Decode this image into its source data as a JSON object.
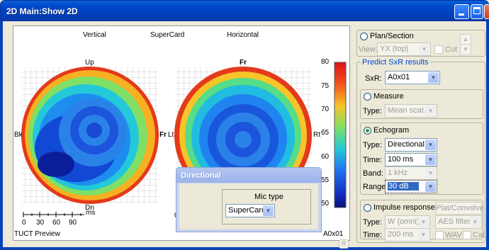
{
  "window": {
    "title": "2D  Main:Show 2D"
  },
  "plot": {
    "header_left": "Vertical",
    "header_center": "SuperCard",
    "header_right": "Horizontal",
    "left_top": "Up",
    "left_bottom": "Dn",
    "left_left": "Bk",
    "left_right": "Fr",
    "right_top": "Fr",
    "right_left": "Lt",
    "right_right": "Rt",
    "scale_unit": "ms",
    "scale_ticks": [
      "0",
      "30",
      "60",
      "90"
    ],
    "footer_left": "TUCT Preview",
    "footer_right": "A0x01",
    "right_bottom_zero": "0",
    "colorbar_ticks": [
      "80",
      "75",
      "70",
      "65",
      "60",
      "55",
      "50"
    ]
  },
  "panel": {
    "plan_label": "Plan/Section",
    "view_label": "View:",
    "view_value": "YX (top)",
    "cutz_label": "Cut z",
    "predict_label": "Predict SxR results",
    "sxr_label": "SxR:",
    "sxr_value": "A0x01",
    "measure_label": "Measure",
    "measure_type_label": "Type:",
    "measure_type_value": "Mean scat.",
    "echogram_label": "Echogram",
    "echo_type_label": "Type:",
    "echo_type_value": "Directional",
    "echo_time_label": "Time:",
    "echo_time_value": "100 ms",
    "echo_band_label": "Band:",
    "echo_band_value": "1 kHz",
    "echo_range_label": "Range:",
    "echo_range_value": "30 dB",
    "impulse_label": "Impulse response",
    "plat_button": "Plat/Convolve",
    "imp_type_label": "Type:",
    "imp_type_value": "W (omni)",
    "aes_value": "AES filter",
    "imp_time_label": "Time:",
    "imp_time_value": "200 ms",
    "wav_label": "WAV",
    "cal_label": "Cal."
  },
  "dialog": {
    "title": "Directional",
    "group_label": "Mic type",
    "mic_value": "SuperCard"
  },
  "r_label": "R",
  "colors": {
    "titlebar": "#0047c8",
    "dialog_title": "#9cb3ea"
  }
}
